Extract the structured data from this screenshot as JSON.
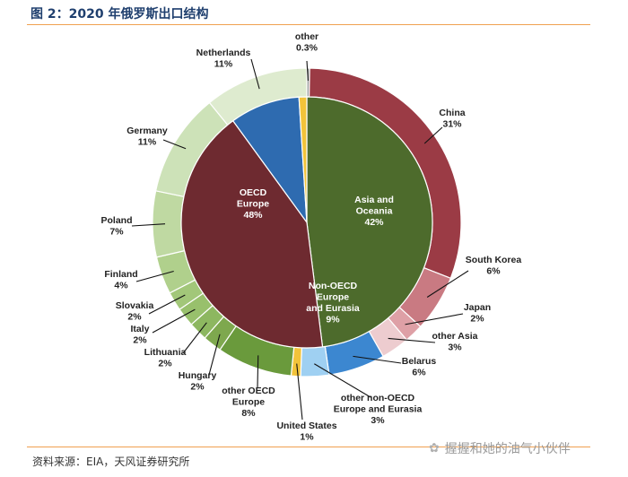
{
  "figure_title": "图 2：2020 年俄罗斯出口结构",
  "source": "资料来源：EIA，天风证券研究所",
  "watermark": "握握和她的油气小伙伴",
  "watermark_icon": "wechat-icon",
  "chart_data": {
    "type": "pie",
    "subtype": "nested-donut",
    "title": "",
    "inner_ring": [
      {
        "label": "OECD\nEurope\n48%",
        "value": 48,
        "color": "#4d6b2c"
      },
      {
        "label": "Asia and\nOceania\n42%",
        "value": 42,
        "color": "#6e2a30"
      },
      {
        "label": "Non-OECD\nEurope\nand Eurasia\n9%",
        "value": 9,
        "color": "#2e6bb0"
      },
      {
        "label": "",
        "value": 1,
        "color": "#f2c33a"
      }
    ],
    "outer_ring": [
      {
        "label": "other\n0.3%",
        "value": 0.3,
        "color": "#999999"
      },
      {
        "label": "China\n31%",
        "value": 31,
        "color": "#9b3b45"
      },
      {
        "label": "South Korea\n6%",
        "value": 6,
        "color": "#c97a82"
      },
      {
        "label": "Japan\n2%",
        "value": 2,
        "color": "#dea0a6"
      },
      {
        "label": "other Asia\n3%",
        "value": 3,
        "color": "#edcccf"
      },
      {
        "label": "Belarus\n6%",
        "value": 6,
        "color": "#3c87d0"
      },
      {
        "label": "other non-OECD\nEurope and Eurasia\n3%",
        "value": 3,
        "color": "#9fd0f2"
      },
      {
        "label": "United States\n1%",
        "value": 1,
        "color": "#f2c33a"
      },
      {
        "label": "other OECD\nEurope\n8%",
        "value": 8,
        "color": "#6a9a3c"
      },
      {
        "label": "Hungary\n2%",
        "value": 2,
        "color": "#7ea84e"
      },
      {
        "label": "Lithuania\n2%",
        "value": 2,
        "color": "#8db760"
      },
      {
        "label": "Italy\n2%",
        "value": 2,
        "color": "#98c06c"
      },
      {
        "label": "Slovakia\n2%",
        "value": 2,
        "color": "#a2c779"
      },
      {
        "label": "Finland\n4%",
        "value": 4,
        "color": "#b0d08c"
      },
      {
        "label": "Poland\n7%",
        "value": 7,
        "color": "#bfd9a2"
      },
      {
        "label": "Germany\n11%",
        "value": 11,
        "color": "#cde2b8"
      },
      {
        "label": "Netherlands\n11%",
        "value": 11,
        "color": "#deebcf"
      }
    ],
    "legend": "none"
  }
}
